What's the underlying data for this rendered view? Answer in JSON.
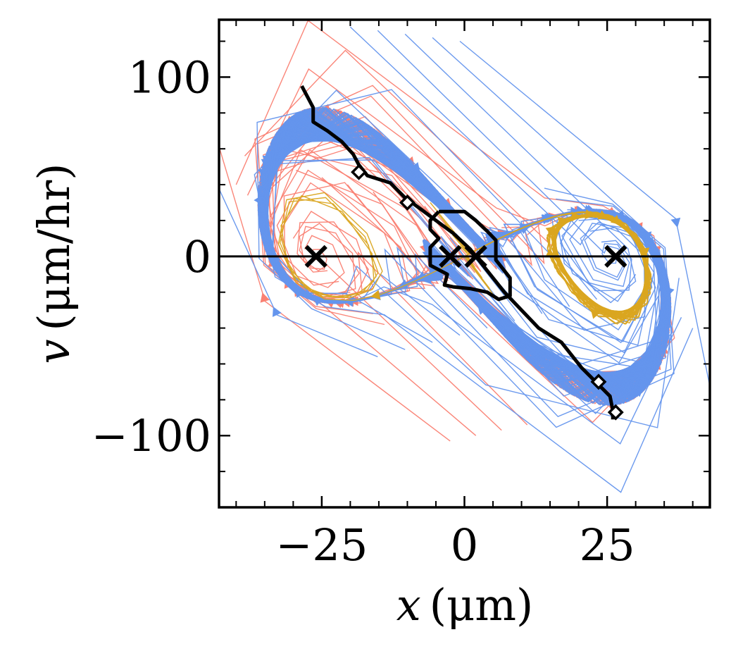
{
  "chart_data": {
    "type": "phase-portrait",
    "xlabel": "x (μm)",
    "ylabel": "v (μm/hr)",
    "xlabel_parts": {
      "var": "x",
      "units": "(μm)"
    },
    "ylabel_parts": {
      "var": "v",
      "units": "(μm/hr)"
    },
    "xlim": [
      -43,
      43
    ],
    "ylim": [
      -140,
      132
    ],
    "x_major_ticks": [
      -25,
      0,
      25
    ],
    "x_tick_labels": [
      "−25",
      "0",
      "25"
    ],
    "x_minor_ticks": [
      -40,
      -35,
      -30,
      -20,
      -15,
      -10,
      -5,
      5,
      10,
      15,
      20,
      30,
      35,
      40
    ],
    "y_major_ticks": [
      -100,
      0,
      100
    ],
    "y_tick_labels": [
      "−100",
      "0",
      "100"
    ],
    "y_minor_ticks": [
      -120,
      -80,
      -60,
      -40,
      -20,
      20,
      40,
      60,
      80,
      120
    ],
    "zero_line_y": 0,
    "colors": {
      "left_basin": "#fa8072",
      "right_basin": "#6495ed",
      "middle_basin": "#daa520",
      "separatrix": "#000000"
    },
    "fixed_points": [
      {
        "x": -26,
        "y": 0,
        "marker": "x"
      },
      {
        "x": -2.5,
        "y": 0,
        "marker": "x"
      },
      {
        "x": 2,
        "y": 0,
        "marker": "x"
      },
      {
        "x": 26.5,
        "y": 0,
        "marker": "x"
      }
    ],
    "diamond_markers": [
      {
        "x": -18.5,
        "y": 47
      },
      {
        "x": -10,
        "y": 30
      },
      {
        "x": 23.5,
        "y": -70
      },
      {
        "x": 26.5,
        "y": -87
      }
    ],
    "separatrix_curve": [
      [
        -28.5,
        95
      ],
      [
        -28,
        92
      ],
      [
        -26.5,
        83
      ],
      [
        -26.5,
        75
      ],
      [
        -24,
        70
      ],
      [
        -21.5,
        64
      ],
      [
        -19.5,
        57
      ],
      [
        -18.5,
        51
      ],
      [
        -17,
        45
      ],
      [
        -13,
        41
      ],
      [
        -10.5,
        33
      ],
      [
        -7.5,
        26
      ],
      [
        -5,
        20
      ],
      [
        -2,
        13
      ],
      [
        1,
        4
      ],
      [
        4,
        -8
      ],
      [
        7,
        -20
      ],
      [
        10,
        -30
      ],
      [
        13,
        -40
      ],
      [
        17,
        -48
      ],
      [
        20.5,
        -62
      ],
      [
        23,
        -70
      ],
      [
        25.5,
        -78
      ],
      [
        26,
        -86
      ],
      [
        26,
        -91
      ]
    ],
    "inner_loop": [
      [
        -4.5,
        25
      ],
      [
        -2.5,
        25
      ],
      [
        0,
        25
      ],
      [
        2,
        20
      ],
      [
        4,
        14
      ],
      [
        5.5,
        9
      ],
      [
        5.5,
        -2
      ],
      [
        8,
        -12
      ],
      [
        8,
        -22
      ],
      [
        6,
        -24
      ],
      [
        4,
        -20
      ],
      [
        1,
        -18
      ],
      [
        -2,
        -17
      ],
      [
        -3.5,
        -16
      ],
      [
        -3,
        -10
      ],
      [
        -6,
        -5
      ],
      [
        -6,
        5
      ],
      [
        -4.5,
        10
      ],
      [
        -6,
        15
      ],
      [
        -6,
        20
      ],
      [
        -4.5,
        25
      ]
    ]
  }
}
